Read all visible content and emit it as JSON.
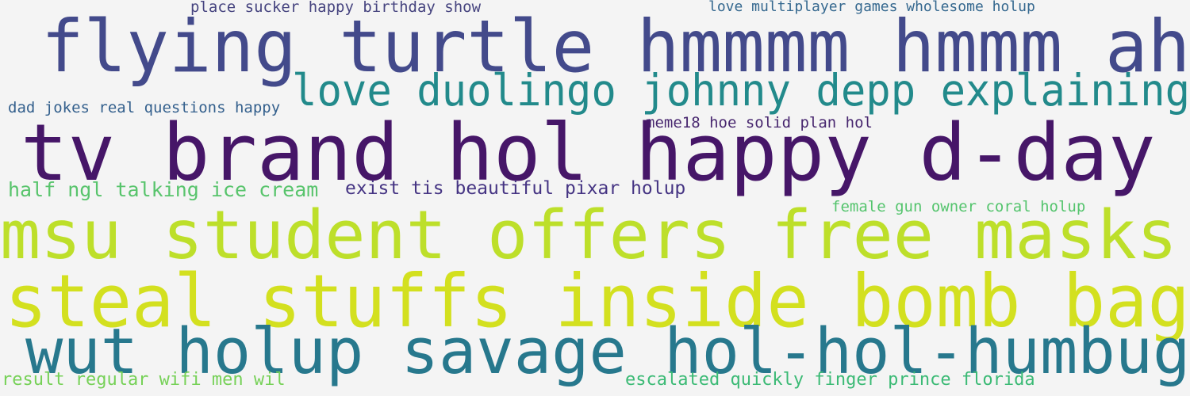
{
  "phrases": [
    {
      "text": "place sucker happy birthday show",
      "color": "#46447f"
    },
    {
      "text": "love multiplayer games wholesome holup",
      "color": "#35688f"
    },
    {
      "text": "flying turtle hmmmm hmmm ah",
      "color": "#434a8b"
    },
    {
      "text": "love duolingo johnny depp explaining",
      "color": "#228a8b"
    },
    {
      "text": "dad jokes real questions happy",
      "color": "#34608d"
    },
    {
      "text": "meme18 hoe solid plan hol",
      "color": "#48276f"
    },
    {
      "text": "tv brand hol happy d-day",
      "color": "#461668"
    },
    {
      "text": "half ngl talking ice cream",
      "color": "#58c46c"
    },
    {
      "text": "exist tis beautiful pixar holup",
      "color": "#453483"
    },
    {
      "text": "female gun owner coral holup",
      "color": "#54c46d"
    },
    {
      "text": "msu student offers free masks",
      "color": "#bddf2a"
    },
    {
      "text": "steal stuffs inside bomb bag",
      "color": "#d3e01f"
    },
    {
      "text": "wut holup savage hol-hol-humbug",
      "color": "#27788d"
    },
    {
      "text": "result regular wifi men wil",
      "color": "#76d157"
    },
    {
      "text": "escalated quickly finger prince florida",
      "color": "#3bba75"
    }
  ]
}
